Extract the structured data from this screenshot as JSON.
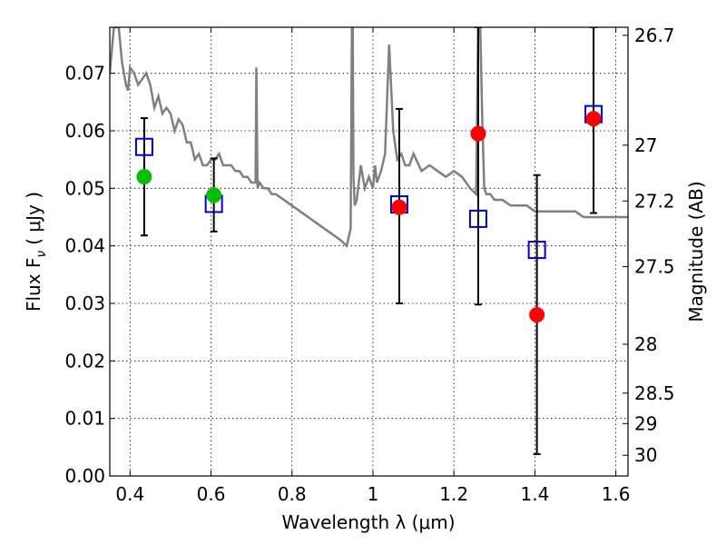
{
  "chart_data": {
    "type": "scatter",
    "title": "",
    "xlabel": "Wavelength  λ (μm)",
    "ylabel": "Flux  F",
    "ylabel_sub": "ν",
    "ylabel_unit": "( μJy )",
    "y2label": "Magnitude (AB)",
    "xlim": [
      0.35,
      1.63
    ],
    "ylim": [
      0.0,
      0.078
    ],
    "grid": true,
    "x_ticks": [
      0.4,
      0.6,
      0.8,
      1.0,
      1.2,
      1.4,
      1.6
    ],
    "x_tick_labels": [
      "0.4",
      "0.6",
      "0.8",
      "1",
      "1.2",
      "1.4",
      "1.6"
    ],
    "y_ticks": [
      0.0,
      0.01,
      0.02,
      0.03,
      0.04,
      0.05,
      0.06,
      0.07
    ],
    "y_tick_labels": [
      "0.00",
      "0.01",
      "0.02",
      "0.03",
      "0.04",
      "0.05",
      "0.06",
      "0.07"
    ],
    "y2_ticks": [
      {
        "flux": 0.0766,
        "label": "26.7"
      },
      {
        "flux": 0.0575,
        "label": "27"
      },
      {
        "flux": 0.0478,
        "label": "27.2"
      },
      {
        "flux": 0.0364,
        "label": "27.5"
      },
      {
        "flux": 0.0229,
        "label": "28"
      },
      {
        "flux": 0.0144,
        "label": "28.5"
      },
      {
        "flux": 0.0091,
        "label": "29"
      },
      {
        "flux": 0.0036,
        "label": "30"
      }
    ],
    "series": [
      {
        "style": "line",
        "color": "#808080",
        "x": [
          0.35,
          0.36,
          0.37,
          0.372,
          0.38,
          0.39,
          0.395,
          0.4,
          0.41,
          0.42,
          0.43,
          0.44,
          0.45,
          0.46,
          0.47,
          0.48,
          0.49,
          0.5,
          0.51,
          0.52,
          0.53,
          0.54,
          0.55,
          0.56,
          0.57,
          0.58,
          0.59,
          0.6,
          0.61,
          0.62,
          0.63,
          0.64,
          0.65,
          0.66,
          0.67,
          0.68,
          0.69,
          0.7,
          0.71,
          0.712,
          0.715,
          0.72,
          0.73,
          0.74,
          0.75,
          0.76,
          0.78,
          0.8,
          0.82,
          0.84,
          0.86,
          0.88,
          0.9,
          0.92,
          0.935,
          0.945,
          0.948,
          0.95,
          0.952,
          0.955,
          0.96,
          0.97,
          0.98,
          0.99,
          1.0,
          1.005,
          1.01,
          1.02,
          1.03,
          1.04,
          1.05,
          1.06,
          1.07,
          1.08,
          1.09,
          1.1,
          1.12,
          1.14,
          1.16,
          1.18,
          1.2,
          1.22,
          1.24,
          1.255,
          1.26,
          1.265,
          1.27,
          1.275,
          1.28,
          1.29,
          1.3,
          1.32,
          1.34,
          1.36,
          1.38,
          1.4,
          1.42,
          1.44,
          1.46,
          1.48,
          1.5,
          1.52,
          1.54,
          1.56,
          1.58,
          1.6,
          1.62,
          1.63
        ],
        "y": [
          0.07,
          0.078,
          0.078,
          0.078,
          0.072,
          0.068,
          0.067,
          0.071,
          0.07,
          0.068,
          0.069,
          0.07,
          0.068,
          0.064,
          0.066,
          0.063,
          0.064,
          0.063,
          0.06,
          0.062,
          0.061,
          0.058,
          0.058,
          0.055,
          0.056,
          0.054,
          0.054,
          0.055,
          0.055,
          0.056,
          0.054,
          0.054,
          0.054,
          0.053,
          0.053,
          0.052,
          0.052,
          0.051,
          0.051,
          0.071,
          0.05,
          0.051,
          0.05,
          0.05,
          0.049,
          0.049,
          0.048,
          0.047,
          0.046,
          0.045,
          0.044,
          0.043,
          0.042,
          0.041,
          0.04,
          0.043,
          0.078,
          0.078,
          0.052,
          0.047,
          0.048,
          0.054,
          0.05,
          0.052,
          0.05,
          0.054,
          0.051,
          0.053,
          0.056,
          0.075,
          0.06,
          0.055,
          0.056,
          0.054,
          0.054,
          0.056,
          0.053,
          0.054,
          0.053,
          0.052,
          0.053,
          0.052,
          0.05,
          0.049,
          0.078,
          0.078,
          0.062,
          0.05,
          0.049,
          0.049,
          0.048,
          0.048,
          0.047,
          0.047,
          0.047,
          0.046,
          0.046,
          0.046,
          0.046,
          0.046,
          0.046,
          0.045,
          0.045,
          0.045,
          0.045,
          0.045,
          0.045,
          0.045
        ]
      },
      {
        "style": "open-square",
        "color": "#0000cc",
        "x": [
          0.435,
          0.607,
          1.065,
          1.26,
          1.405,
          1.545
        ],
        "y": [
          0.0572,
          0.0473,
          0.0472,
          0.0447,
          0.0393,
          0.0629
        ]
      },
      {
        "style": "filled-circle",
        "color": "#00c000",
        "x": [
          0.435,
          0.607
        ],
        "y": [
          0.052,
          0.0488
        ]
      },
      {
        "style": "filled-circle",
        "color": "#ff0000",
        "x": [
          1.065,
          1.26,
          1.405,
          1.545
        ],
        "y": [
          0.0467,
          0.0595,
          0.028,
          0.0621
        ]
      },
      {
        "style": "errorbar",
        "color": "#000000",
        "x": [
          0.435,
          0.607,
          1.065,
          1.26,
          1.405,
          1.545
        ],
        "low": [
          0.0418,
          0.0425,
          0.03,
          0.0298,
          0.0038,
          0.0457
        ],
        "high": [
          0.0622,
          0.0552,
          0.0638,
          0.078,
          0.0523,
          0.078
        ]
      }
    ]
  }
}
